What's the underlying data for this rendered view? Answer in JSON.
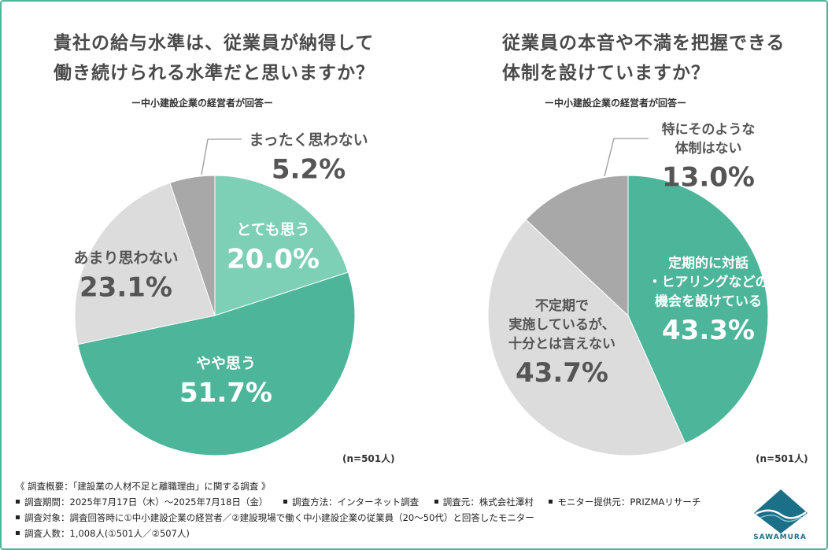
{
  "left": {
    "title_lines": [
      "貴社の給与水準は、従業員が納得して",
      "働き続けられる水準だと思いますか？"
    ],
    "subtitle": "ー中小建設企業の経営者が回答ー",
    "n_label": "(n=501人)"
  },
  "right": {
    "title_lines": [
      "従業員の本音や不満を把握できる",
      "体制を設けていますか？"
    ],
    "subtitle": "ー中小建設企業の経営者が回答ー",
    "n_label": "(n=501人)"
  },
  "chart_data": [
    {
      "type": "pie",
      "title": "貴社の給与水準は、従業員が納得して働き続けられる水準だと思いますか？",
      "subtitle": "ー中小建設企業の経営者が回答ー",
      "unit": "%",
      "slices": [
        {
          "label_lines": [
            "とても思う"
          ],
          "value": 20.0,
          "value_label": "20.0%",
          "color": "#7dcfb5"
        },
        {
          "label_lines": [
            "やや思う"
          ],
          "value": 51.7,
          "value_label": "51.7%",
          "color": "#4db59a"
        },
        {
          "label_lines": [
            "あまり思わない"
          ],
          "value": 23.1,
          "value_label": "23.1%",
          "color": "#dcdcdc"
        },
        {
          "label_lines": [
            "まったく思わない"
          ],
          "value": 5.2,
          "value_label": "5.2%",
          "color": "#a8a8a8"
        }
      ]
    },
    {
      "type": "pie",
      "title": "従業員の本音や不満を把握できる体制を設けていますか？",
      "subtitle": "ー中小建設企業の経営者が回答ー",
      "unit": "%",
      "slices": [
        {
          "label_lines": [
            "定期的に対話",
            "・ヒアリングなどの",
            "機会を設けている"
          ],
          "value": 43.3,
          "value_label": "43.3%",
          "color": "#4db59a"
        },
        {
          "label_lines": [
            "不定期で",
            "実施しているが、",
            "十分とは言えない"
          ],
          "value": 43.7,
          "value_label": "43.7%",
          "color": "#dcdcdc"
        },
        {
          "label_lines": [
            "特にそのような",
            "体制はない"
          ],
          "value": 13.0,
          "value_label": "13.0%",
          "color": "#a8a8a8"
        }
      ]
    }
  ],
  "footer": {
    "heading": "《 調査概要：「建設業の人材不足と離職理由」に関する調査 》",
    "period": "調査期間：2025年7月17日（木）〜2025年7月18日（金）",
    "method": "調査方法：インターネット調査",
    "organizer": "調査元：株式会社澤村",
    "panel": "モニター提供元：PRIZMAリサーチ",
    "target": "調査対象：調査回答時に①中小建設企業の経営者／②建設現場で働く中小建設企業の従業員（20〜50代）と回答したモニター",
    "count": "調査人数：1,008人(①501人／②507人)"
  },
  "logo": {
    "text": "SAWAMURA",
    "color": "#1b6f86"
  }
}
